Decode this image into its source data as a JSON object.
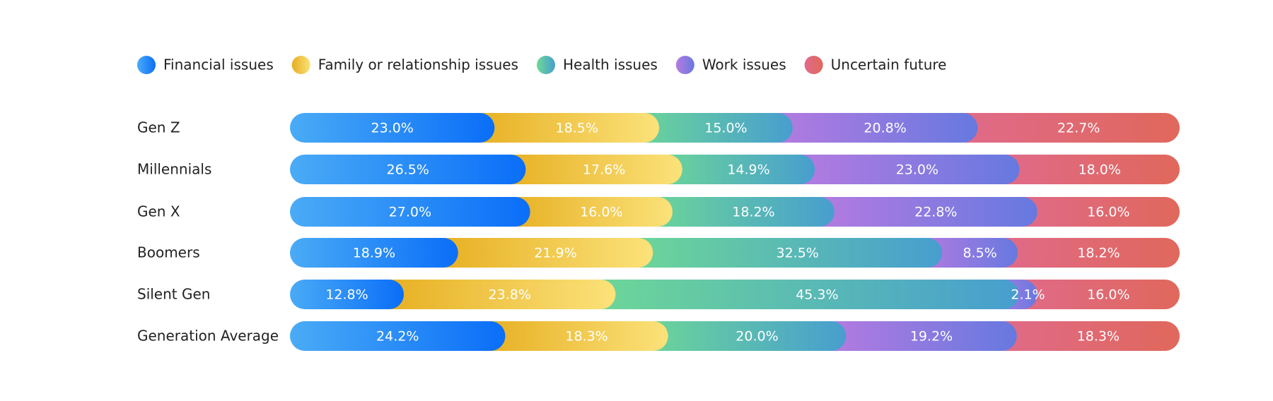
{
  "chart_data": {
    "type": "stacked-bar",
    "orientation": "horizontal",
    "categories": [
      "Gen Z",
      "Millennials",
      "Gen X",
      "Boomers",
      "Silent Gen",
      "Generation Average"
    ],
    "series": [
      {
        "name": "Financial issues",
        "color": [
          "#4aabf6",
          "#0a6ef8"
        ],
        "values": [
          23.0,
          26.5,
          27.0,
          18.9,
          12.8,
          24.2
        ],
        "value_labels": [
          "23.0%",
          "26.5%",
          "27.0%",
          "18.9%",
          "12.8%",
          "24.2%"
        ]
      },
      {
        "name": "Family or relationship issues",
        "color": [
          "#e6ad1e",
          "#fbe27a"
        ],
        "values": [
          18.5,
          17.6,
          16.0,
          21.9,
          23.8,
          18.3
        ],
        "value_labels": [
          "18.5%",
          "17.6%",
          "16.0%",
          "21.9%",
          "23.8%",
          "18.3%"
        ]
      },
      {
        "name": "Health issues",
        "color": [
          "#6ed896",
          "#479ecf"
        ],
        "values": [
          15.0,
          14.9,
          18.2,
          32.5,
          45.3,
          20.0
        ],
        "value_labels": [
          "15.0%",
          "14.9%",
          "18.2%",
          "32.5%",
          "45.3%",
          "20.0%"
        ]
      },
      {
        "name": "Work issues",
        "color": [
          "#b97be0",
          "#6679e0"
        ],
        "values": [
          20.8,
          23.0,
          22.8,
          8.5,
          2.1,
          19.2
        ],
        "value_labels": [
          "20.8%",
          "23.0%",
          "22.8%",
          "8.5%",
          "2.1%",
          "19.2%"
        ]
      },
      {
        "name": "Uncertain future",
        "color": [
          "#e06a8c",
          "#e0685b"
        ],
        "values": [
          22.7,
          18.0,
          16.0,
          18.2,
          16.0,
          18.3
        ],
        "value_labels": [
          "22.7%",
          "18.0%",
          "16.0%",
          "18.2%",
          "16.0%",
          "18.3%"
        ]
      }
    ]
  }
}
